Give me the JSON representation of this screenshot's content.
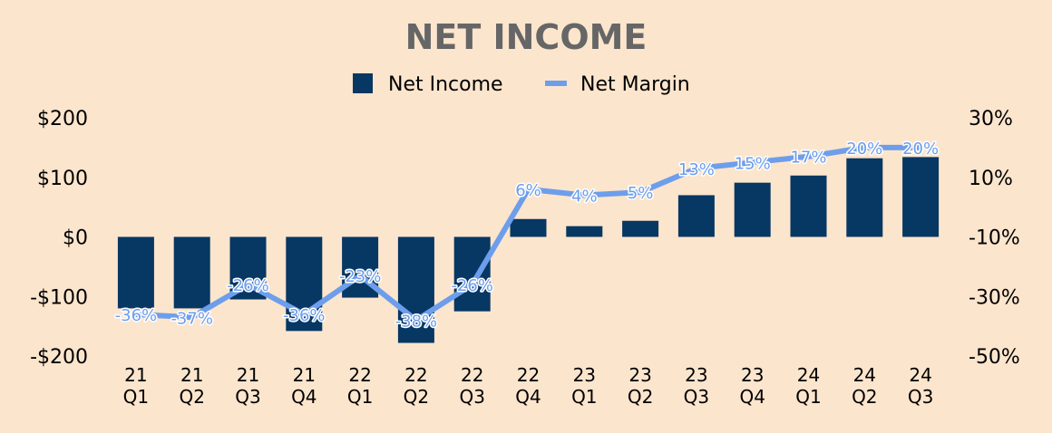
{
  "chart_data": {
    "type": "bar",
    "title": "NET INCOME",
    "categories": [
      [
        "21",
        "Q1"
      ],
      [
        "21",
        "Q2"
      ],
      [
        "21",
        "Q3"
      ],
      [
        "21",
        "Q4"
      ],
      [
        "22",
        "Q1"
      ],
      [
        "22",
        "Q2"
      ],
      [
        "22",
        "Q3"
      ],
      [
        "22",
        "Q4"
      ],
      [
        "23",
        "Q1"
      ],
      [
        "23",
        "Q2"
      ],
      [
        "23",
        "Q3"
      ],
      [
        "23",
        "Q4"
      ],
      [
        "24",
        "Q1"
      ],
      [
        "24",
        "Q2"
      ],
      [
        "24",
        "Q3"
      ]
    ],
    "legend": {
      "position": "top",
      "items": [
        "Net Income",
        "Net Margin"
      ]
    },
    "series": [
      {
        "name": "Net Income",
        "type": "bar",
        "axis": "left",
        "color": "#073763",
        "values": [
          -120,
          -120,
          -105,
          -158,
          -102,
          -178,
          -125,
          30,
          18,
          27,
          70,
          91,
          103,
          132,
          134
        ]
      },
      {
        "name": "Net Margin",
        "type": "line",
        "axis": "right",
        "color": "#6d9eeb",
        "values": [
          -36,
          -37,
          -26,
          -36,
          -23,
          -38,
          -26,
          6,
          4,
          5,
          13,
          15,
          17,
          20,
          20
        ],
        "labels": [
          "-36%",
          "-37%",
          "-26%",
          "-36%",
          "-23%",
          "-38%",
          "-26%",
          "6%",
          "4%",
          "5%",
          "13%",
          "15%",
          "17%",
          "20%",
          "20%"
        ]
      }
    ],
    "y_left": {
      "min": -200,
      "max": 200,
      "ticks": [
        200,
        100,
        0,
        -100,
        -200
      ],
      "tick_labels": [
        "$200",
        "$100",
        "$0",
        "-$100",
        "-$200"
      ]
    },
    "y_right": {
      "min": -50,
      "max": 30,
      "ticks": [
        30,
        10,
        -10,
        -30,
        -50
      ],
      "tick_labels": [
        "30%",
        "10%",
        "-10%",
        "-30%",
        "-50%"
      ]
    },
    "grid": false
  }
}
